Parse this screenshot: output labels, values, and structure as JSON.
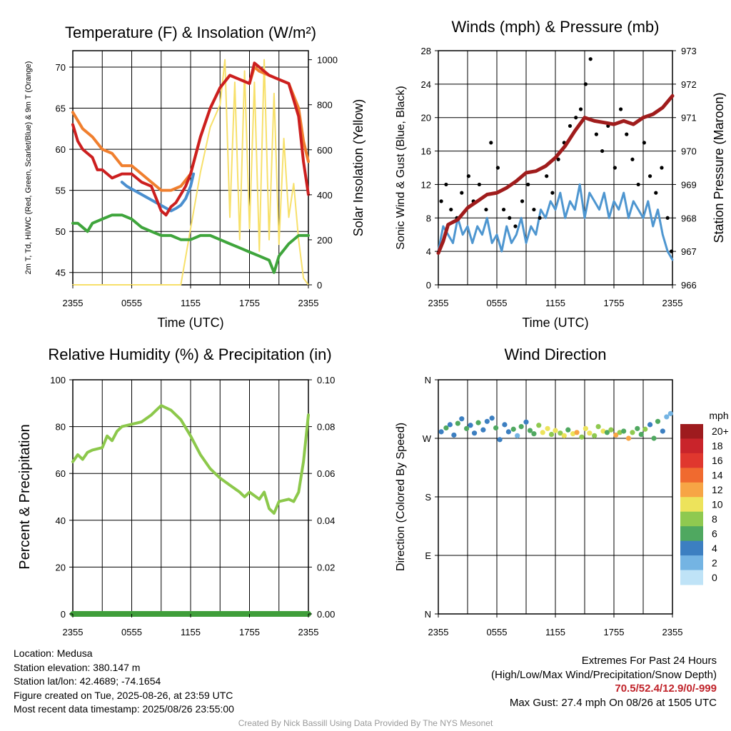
{
  "panels": {
    "temperature": {
      "title": "Temperature (F) & Insolation (W/m²)",
      "xlabel": "Time (UTC)",
      "ylabel_left": "2m T, Td, HI/WC (Red, Green, Scarlet/Blue) & 9m T (Orange)",
      "ylabel_right": "Solar Insolation (Yellow)",
      "yticks_left": [
        "45",
        "50",
        "55",
        "60",
        "65",
        "70"
      ],
      "yticks_right": [
        "0",
        "200",
        "400",
        "600",
        "800",
        "1000"
      ],
      "xticks": [
        "2355",
        "0555",
        "1155",
        "1755",
        "2355"
      ]
    },
    "winds": {
      "title": "Winds (mph) & Pressure (mb)",
      "xlabel": "Time (UTC)",
      "ylabel_left": "Sonic Wind & Gust (Blue, Black)",
      "ylabel_right": "Station Pressure (Maroon)",
      "yticks_left": [
        "0",
        "4",
        "8",
        "12",
        "16",
        "20",
        "24",
        "28"
      ],
      "yticks_right": [
        "966",
        "967",
        "968",
        "969",
        "970",
        "971",
        "972",
        "973"
      ],
      "xticks": [
        "2355",
        "0555",
        "1155",
        "1755",
        "2355"
      ]
    },
    "humidity": {
      "title": "Relative Humidity (%) & Precipitation (in)",
      "ylabel_left": "Percent & Precipitation",
      "yticks_left": [
        "0",
        "20",
        "40",
        "60",
        "80",
        "100"
      ],
      "yticks_right": [
        "0.00",
        "0.02",
        "0.04",
        "0.06",
        "0.08",
        "0.10"
      ],
      "xticks": [
        "2355",
        "0555",
        "1155",
        "1755",
        "2355"
      ]
    },
    "direction": {
      "title": "Wind Direction",
      "ylabel_left": "Direction (Colored By Speed)",
      "yticks_left": [
        "N",
        "E",
        "S",
        "W",
        "N"
      ],
      "xticks": [
        "2355",
        "0555",
        "1155",
        "1755",
        "2355"
      ],
      "colorbar_title": "mph",
      "colorbar_labels": [
        "20+",
        "18",
        "16",
        "14",
        "12",
        "10",
        "8",
        "6",
        "4",
        "2",
        "0"
      ]
    }
  },
  "colors": {
    "air_temp": "#cc1f1f",
    "temp_9m": "#f07f2e",
    "dewpoint": "#3fa53c",
    "heat_index": "#4a8fcf",
    "insolation": "#f7e06a",
    "wind": "#4e96d0",
    "gust": "#000000",
    "pressure": "#a01c1c",
    "humidity": "#8cc84b",
    "precip": "#3f9e3a",
    "colorbar": [
      "#9e1b1e",
      "#c9242b",
      "#e0372e",
      "#f06a2f",
      "#f7a545",
      "#ede35b",
      "#8fc950",
      "#4fa860",
      "#3c7fc1",
      "#74b4e3",
      "#bfe3f7"
    ]
  },
  "chart_data": [
    {
      "type": "line",
      "title": "Temperature (F) & Insolation (W/m²)",
      "xlabel": "Time (UTC)",
      "x_hours": [
        0,
        3,
        6,
        9,
        12,
        15,
        18,
        21,
        24
      ],
      "ylim_left": [
        43.5,
        72
      ],
      "ylim_right": [
        0,
        1040
      ],
      "series": [
        {
          "name": "2m T",
          "axis": "left",
          "x": [
            0,
            0.5,
            1,
            1.5,
            2,
            2.5,
            3,
            4,
            5,
            6,
            7,
            8,
            9,
            9.5,
            10,
            10.5,
            11,
            11.5,
            12,
            13,
            14,
            15,
            16,
            17,
            18,
            18.5,
            19,
            20,
            21,
            22,
            22.5,
            23,
            23.5,
            24
          ],
          "y": [
            63,
            61,
            60,
            59.5,
            59,
            57.5,
            57.5,
            56.5,
            57,
            57,
            56,
            55.5,
            52.5,
            52,
            53,
            53.5,
            54.5,
            55.5,
            57,
            61.5,
            65,
            67.5,
            69,
            68.5,
            68,
            70.5,
            70,
            69,
            68.5,
            68,
            66,
            64,
            58.5,
            54.5
          ]
        },
        {
          "name": "9m T",
          "axis": "left",
          "x": [
            0,
            1,
            2,
            3,
            4,
            5,
            6,
            7,
            8,
            9,
            10,
            11,
            12,
            13,
            14,
            15,
            16,
            17,
            18,
            18.5,
            19,
            20,
            21,
            22,
            22.5,
            23,
            23.5,
            24
          ],
          "y": [
            64.5,
            62.5,
            61.5,
            60,
            59.5,
            58,
            58,
            57,
            56,
            55,
            55,
            55.5,
            57,
            61.5,
            65,
            67.5,
            69,
            68.5,
            68,
            70,
            69.5,
            69,
            68.5,
            68,
            66.5,
            65,
            61,
            58.5
          ]
        },
        {
          "name": "Td",
          "axis": "left",
          "x": [
            0,
            0.5,
            1,
            1.5,
            2,
            3,
            4,
            5,
            6,
            7,
            8,
            9,
            10,
            11,
            12,
            13,
            14,
            15,
            16,
            17,
            18,
            19,
            20,
            20.5,
            21,
            22,
            23,
            24
          ],
          "y": [
            51,
            51,
            50.5,
            50,
            51,
            51.5,
            52,
            52,
            51.5,
            50.5,
            50,
            49.5,
            49.5,
            49,
            49,
            49.5,
            49.5,
            49,
            48.5,
            48,
            47.5,
            47,
            46.5,
            45,
            47,
            48.5,
            49.5,
            49.5
          ]
        },
        {
          "name": "HI/WC",
          "axis": "left",
          "x": [
            5,
            5.5,
            10,
            10.5,
            11,
            11.5,
            12,
            12.3
          ],
          "y": [
            56,
            55.5,
            52.5,
            52.8,
            53.2,
            54,
            55.5,
            57
          ]
        },
        {
          "name": "Insolation",
          "axis": "right",
          "x": [
            0,
            11,
            12,
            13,
            14,
            15,
            15.5,
            16,
            16.5,
            17,
            17.5,
            18,
            18.5,
            19,
            19.5,
            20,
            20.5,
            21,
            21.5,
            22,
            22.5,
            23,
            23.5,
            24
          ],
          "y": [
            0,
            0,
            250,
            500,
            700,
            800,
            1000,
            300,
            900,
            200,
            950,
            250,
            900,
            150,
            1000,
            200,
            850,
            180,
            650,
            300,
            450,
            200,
            30,
            0
          ]
        }
      ]
    },
    {
      "type": "line",
      "title": "Winds (mph) & Pressure (mb)",
      "xlabel": "Time (UTC)",
      "ylim_left": [
        0,
        28
      ],
      "ylim_right": [
        966,
        973
      ],
      "series": [
        {
          "name": "Sonic Wind",
          "axis": "left",
          "x": [
            0,
            0.5,
            1,
            1.5,
            2,
            2.5,
            3,
            3.5,
            4,
            4.5,
            5,
            5.5,
            6,
            6.5,
            7,
            7.5,
            8,
            8.5,
            9,
            9.5,
            10,
            10.5,
            11,
            11.5,
            12,
            12.5,
            13,
            13.5,
            14,
            14.5,
            15,
            15.5,
            16,
            16.5,
            17,
            17.5,
            18,
            18.5,
            19,
            19.5,
            20,
            20.5,
            21,
            21.5,
            22,
            22.5,
            23,
            23.5,
            24
          ],
          "y": [
            4,
            7,
            6,
            5,
            8,
            6,
            7,
            5,
            7,
            6,
            8,
            5,
            6,
            4,
            7,
            5,
            6,
            8,
            5,
            7,
            6,
            9,
            8,
            10,
            9,
            11,
            8,
            10,
            9,
            12,
            8,
            11,
            10,
            9,
            11,
            8,
            10,
            9,
            11,
            8,
            10,
            9,
            8,
            10,
            7,
            9,
            6,
            4,
            3
          ]
        },
        {
          "name": "Gust",
          "axis": "left",
          "x": [
            0.3,
            0.8,
            1.3,
            1.9,
            2.4,
            3.1,
            3.6,
            4.2,
            4.9,
            5.4,
            6.1,
            6.7,
            7.3,
            7.9,
            8.6,
            9.2,
            9.8,
            10.4,
            11.1,
            11.7,
            12.3,
            12.9,
            13.5,
            14.1,
            14.6,
            15.1,
            15.6,
            16.2,
            16.8,
            17.4,
            18.1,
            18.7,
            19.3,
            19.9,
            20.5,
            21.1,
            21.7,
            22.3,
            22.9,
            23.5,
            23.9
          ],
          "y": [
            10,
            12,
            9,
            8,
            11,
            13,
            10,
            12,
            9,
            17,
            14,
            9,
            8,
            7,
            10,
            12,
            9,
            8,
            13,
            11,
            15,
            17,
            19,
            20,
            21,
            24,
            27,
            18,
            16,
            19,
            14,
            21,
            18,
            15,
            12,
            17,
            13,
            11,
            14,
            8,
            4
          ]
        },
        {
          "name": "Station Pressure",
          "axis": "right",
          "x": [
            0,
            0.5,
            1,
            2,
            3,
            4,
            5,
            6,
            7,
            8,
            9,
            10,
            11,
            12,
            13,
            14,
            15,
            15.5,
            16,
            17,
            18,
            19,
            20,
            21,
            22,
            23,
            24
          ],
          "y": [
            966.95,
            967.3,
            967.8,
            967.95,
            968.3,
            968.5,
            968.7,
            968.75,
            968.9,
            969.1,
            969.35,
            969.4,
            969.55,
            969.8,
            970.15,
            970.6,
            971.0,
            970.95,
            970.9,
            970.85,
            970.8,
            970.9,
            970.8,
            971.0,
            971.1,
            971.3,
            971.65
          ]
        }
      ]
    },
    {
      "type": "line",
      "title": "Relative Humidity (%) & Precipitation (in)",
      "ylim_left": [
        0,
        100
      ],
      "ylim_right": [
        0,
        0.1
      ],
      "series": [
        {
          "name": "Relative Humidity",
          "axis": "left",
          "x": [
            0,
            0.5,
            1,
            1.5,
            2,
            3,
            3.5,
            4,
            4.5,
            5,
            6,
            7,
            8,
            8.5,
            9,
            10,
            11,
            12,
            13,
            14,
            15,
            16,
            17,
            17.5,
            18,
            19,
            19.5,
            20,
            20.5,
            21,
            22,
            22.5,
            23,
            23.5,
            24
          ],
          "y": [
            65,
            68,
            66,
            69,
            70,
            71,
            76,
            74,
            78,
            80,
            81,
            82,
            85,
            87,
            89,
            87,
            83,
            76,
            68,
            62,
            58,
            55,
            52,
            50,
            52,
            49,
            52,
            45,
            43,
            48,
            49,
            48,
            52,
            65,
            85
          ]
        },
        {
          "name": "Precipitation",
          "axis": "right",
          "x": [
            0,
            24
          ],
          "y": [
            0,
            0
          ]
        }
      ]
    },
    {
      "type": "scatter",
      "title": "Wind Direction",
      "ylim": [
        0,
        360
      ],
      "series": [
        {
          "name": "Direction",
          "x": [
            0.3,
            0.8,
            1.2,
            1.6,
            2.0,
            2.4,
            2.9,
            3.3,
            3.7,
            4.1,
            4.6,
            5.0,
            5.5,
            5.9,
            6.3,
            6.8,
            7.2,
            7.7,
            8.1,
            8.5,
            9.0,
            9.4,
            9.8,
            10.3,
            10.7,
            11.2,
            11.6,
            12.0,
            12.5,
            12.9,
            13.3,
            13.8,
            14.2,
            14.7,
            15.1,
            15.5,
            16.0,
            16.4,
            16.9,
            17.3,
            17.7,
            18.2,
            18.6,
            19.0,
            19.5,
            19.9,
            20.4,
            20.8,
            21.2,
            21.7,
            22.1,
            22.5,
            23.0,
            23.4,
            23.8
          ],
          "y": [
            280,
            286,
            291,
            275,
            293,
            300,
            285,
            290,
            278,
            294,
            283,
            296,
            301,
            286,
            268,
            291,
            280,
            284,
            274,
            288,
            295,
            282,
            277,
            290,
            279,
            285,
            276,
            282,
            278,
            274,
            283,
            277,
            279,
            272,
            285,
            278,
            274,
            288,
            281,
            279,
            283,
            275,
            279,
            281,
            270,
            279,
            285,
            276,
            284,
            291,
            270,
            296,
            281,
            303,
            308
          ],
          "speed": [
            4,
            6,
            5,
            4,
            7,
            4,
            6,
            5,
            4,
            7,
            4,
            5,
            4,
            6,
            4,
            5,
            4,
            7,
            3,
            6,
            5,
            7,
            6,
            9,
            10,
            11,
            8,
            10,
            9,
            11,
            7,
            10,
            12,
            9,
            10,
            11,
            8,
            9,
            10,
            7,
            8,
            12,
            9,
            7,
            13,
            8,
            6,
            7,
            8,
            5,
            6,
            7,
            4,
            3,
            2
          ]
        }
      ]
    }
  ],
  "footer": {
    "location": "Location: Medusa",
    "elevation": "Station elevation: 380.147 m",
    "latlon": "Station lat/lon: 42.4689; -74.1654",
    "created": "Figure created on Tue, 2025-08-26, at 23:59 UTC",
    "recent": "Most recent data timestamp: 2025/08/26 23:55:00",
    "extremes_title": "Extremes For Past 24 Hours",
    "extremes_sub": "(High/Low/Max Wind/Precipitation/Snow Depth)",
    "extremes_values": "70.5/52.4/12.9/0/-999",
    "max_gust": "Max Gust: 27.4 mph On 08/26 at 1505 UTC",
    "credit": "Created By Nick Bassill Using Data Provided By The NYS Mesonet"
  }
}
